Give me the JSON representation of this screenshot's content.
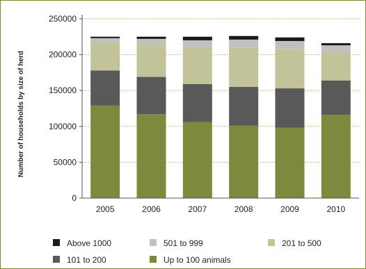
{
  "chart_data": {
    "type": "bar",
    "stacked": true,
    "title": "",
    "xlabel": "",
    "ylabel": "Number of households by size of herd",
    "ylim": [
      0,
      250000
    ],
    "yticks": [
      0,
      50000,
      100000,
      150000,
      200000,
      250000
    ],
    "grid": true,
    "legend_position": "bottom",
    "categories": [
      "2005",
      "2006",
      "2007",
      "2008",
      "2009",
      "2010"
    ],
    "series": [
      {
        "name": "Up to 100 animals",
        "color": "#7b8a3c",
        "values": [
          129000,
          117000,
          106000,
          101000,
          98000,
          116000
        ]
      },
      {
        "name": "101 to 200",
        "color": "#595959",
        "values": [
          49000,
          52000,
          53000,
          54000,
          55000,
          48000
        ]
      },
      {
        "name": "201 to 500",
        "color": "#c3c39a",
        "values": [
          39000,
          45000,
          52000,
          55000,
          55000,
          40000
        ]
      },
      {
        "name": "501 to 999",
        "color": "#c0c0c0",
        "values": [
          6000,
          8000,
          9000,
          11000,
          11000,
          9000
        ]
      },
      {
        "name": "Above 1000",
        "color": "#1a1a1a",
        "values": [
          2000,
          3000,
          5000,
          5000,
          5000,
          3000
        ]
      }
    ],
    "legend_order": [
      "Above 1000",
      "501 to 999",
      "201 to 500",
      "101 to 200",
      "Up to 100 animals"
    ]
  }
}
